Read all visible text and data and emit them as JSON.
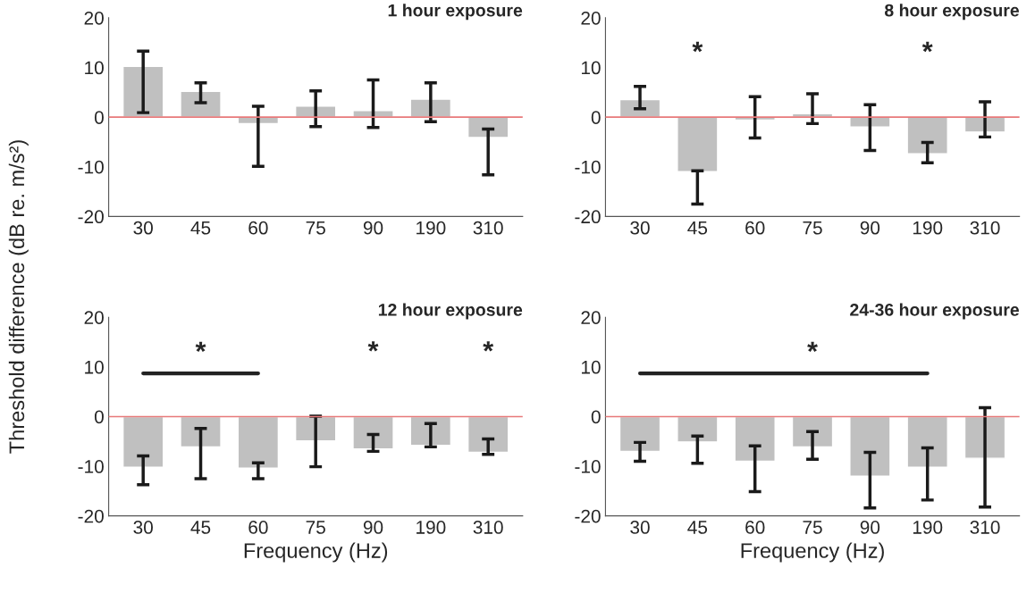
{
  "chart_data": [
    {
      "type": "bar",
      "title": "1 hour exposure",
      "ylabel": "Threshold difference (dB re. m/s²)",
      "categories": [
        "30",
        "45",
        "60",
        "75",
        "90",
        "190",
        "310"
      ],
      "series": [
        {
          "color": "#c0c0c0",
          "values": [
            10.2,
            5.2,
            -1.3,
            2.2,
            1.3,
            3.6,
            -4.1
          ],
          "errors": [
            [
              0.9,
              13.3
            ],
            [
              2.9,
              6.9
            ],
            [
              -9.9,
              2.2
            ],
            [
              -1.9,
              5.3
            ],
            [
              -2.1,
              7.5
            ],
            [
              -0.9,
              6.9
            ],
            [
              -11.6,
              -2.4
            ]
          ]
        }
      ],
      "ylim": [
        -20,
        20
      ],
      "yticks": [
        -20,
        -10,
        0,
        10,
        20
      ],
      "ref_lines": [
        {
          "axis": "y",
          "value": 0,
          "color": "#e8797a"
        }
      ],
      "grid": false,
      "legend": false
    },
    {
      "type": "bar",
      "title": "8 hour exposure",
      "categories": [
        "30",
        "45",
        "60",
        "75",
        "90",
        "190",
        "310"
      ],
      "series": [
        {
          "color": "#c0c0c0",
          "values": [
            3.5,
            -11,
            -0.6,
            0.7,
            -2,
            -7.4,
            -3
          ],
          "value_labels": [
            null,
            "*",
            null,
            null,
            null,
            "*",
            null
          ],
          "errors": [
            [
              1.7,
              6.2
            ],
            [
              -17.5,
              -10.8
            ],
            [
              -4.2,
              4.1
            ],
            [
              -1.3,
              4.7
            ],
            [
              -6.7,
              2.5
            ],
            [
              -9.2,
              -5.1
            ],
            [
              -4.0,
              3.1
            ]
          ]
        }
      ],
      "ylim": [
        -20,
        20
      ],
      "yticks": [
        -20,
        -10,
        0,
        10,
        20
      ],
      "ref_lines": [
        {
          "axis": "y",
          "value": 0,
          "color": "#e8797a"
        }
      ],
      "grid": false,
      "legend": false
    },
    {
      "type": "bar",
      "title": "12 hour exposure",
      "xlabel": "Frequency (Hz)",
      "categories": [
        "30",
        "45",
        "60",
        "75",
        "90",
        "190",
        "310"
      ],
      "series": [
        {
          "color": "#c0c0c0",
          "values": [
            -10.2,
            -6.1,
            -10.4,
            -4.9,
            -6.5,
            -5.8,
            -7.2
          ],
          "value_labels": [
            null,
            null,
            null,
            null,
            "*",
            null,
            "*"
          ],
          "errors": [
            [
              -13.7,
              -7.9
            ],
            [
              -12.5,
              -2.4
            ],
            [
              -12.5,
              -9.3
            ],
            [
              -10.1,
              0.1
            ],
            [
              -7.0,
              -3.6
            ],
            [
              -6.1,
              -1.4
            ],
            [
              -7.6,
              -4.5
            ]
          ]
        },
        {
          "type": "line",
          "color": "#222222",
          "values": [
            8.7,
            8.7,
            8.7,
            null,
            null,
            null,
            null
          ],
          "value_labels": [
            null,
            "*",
            null,
            null,
            null,
            null,
            null
          ]
        }
      ],
      "ylim": [
        -20,
        20
      ],
      "yticks": [
        -20,
        -10,
        0,
        10,
        20
      ],
      "ref_lines": [
        {
          "axis": "y",
          "value": 0,
          "color": "#e8797a"
        }
      ],
      "grid": false,
      "legend": false
    },
    {
      "type": "bar",
      "title": "24-36 hour exposure",
      "xlabel": "Frequency (Hz)",
      "categories": [
        "30",
        "45",
        "60",
        "75",
        "90",
        "190",
        "310"
      ],
      "series": [
        {
          "color": "#c0c0c0",
          "values": [
            -7.0,
            -5.1,
            -9.0,
            -6.1,
            -12.0,
            -10.2,
            -8.4
          ],
          "errors": [
            [
              -9.0,
              -5.2
            ],
            [
              -9.4,
              -3.9
            ],
            [
              -15.1,
              -5.9
            ],
            [
              -8.6,
              -3.0
            ],
            [
              -18.4,
              -7.2
            ],
            [
              -16.8,
              -6.3
            ],
            [
              -18.2,
              1.8
            ]
          ]
        },
        {
          "type": "line",
          "color": "#222222",
          "values": [
            8.7,
            8.7,
            8.7,
            8.7,
            8.7,
            8.7,
            null
          ],
          "value_labels": [
            null,
            null,
            null,
            "*",
            null,
            null,
            null
          ]
        }
      ],
      "ylim": [
        -20,
        20
      ],
      "yticks": [
        -20,
        -10,
        0,
        10,
        20
      ],
      "ref_lines": [
        {
          "axis": "y",
          "value": 0,
          "color": "#e8797a"
        }
      ],
      "grid": false,
      "legend": false
    }
  ]
}
